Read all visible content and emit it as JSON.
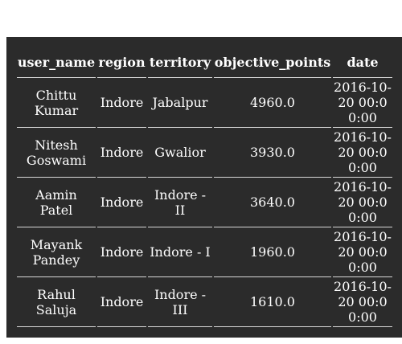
{
  "table": {
    "headers": [
      "user_name",
      "region",
      "territory",
      "objective_points",
      "date"
    ],
    "rows": [
      {
        "user_name": "Chittu Kumar",
        "region": "Indore",
        "territory": "Jabalpur",
        "objective_points": "4960.0",
        "date": "2016-10-20 00:00:00"
      },
      {
        "user_name": "Nitesh Goswami",
        "region": "Indore",
        "territory": "Gwalior",
        "objective_points": "3930.0",
        "date": "2016-10-20 00:00:00"
      },
      {
        "user_name": "Aamin Patel",
        "region": "Indore",
        "territory": "Indore - II",
        "objective_points": "3640.0",
        "date": "2016-10-20 00:00:00"
      },
      {
        "user_name": "Mayank Pandey",
        "region": "Indore",
        "territory": "Indore - I",
        "objective_points": "1960.0",
        "date": "2016-10-20 00:00:00"
      },
      {
        "user_name": "Rahul Saluja",
        "region": "Indore",
        "territory": "Indore - III",
        "objective_points": "1610.0",
        "date": "2016-10-20 00:00:00"
      }
    ]
  }
}
